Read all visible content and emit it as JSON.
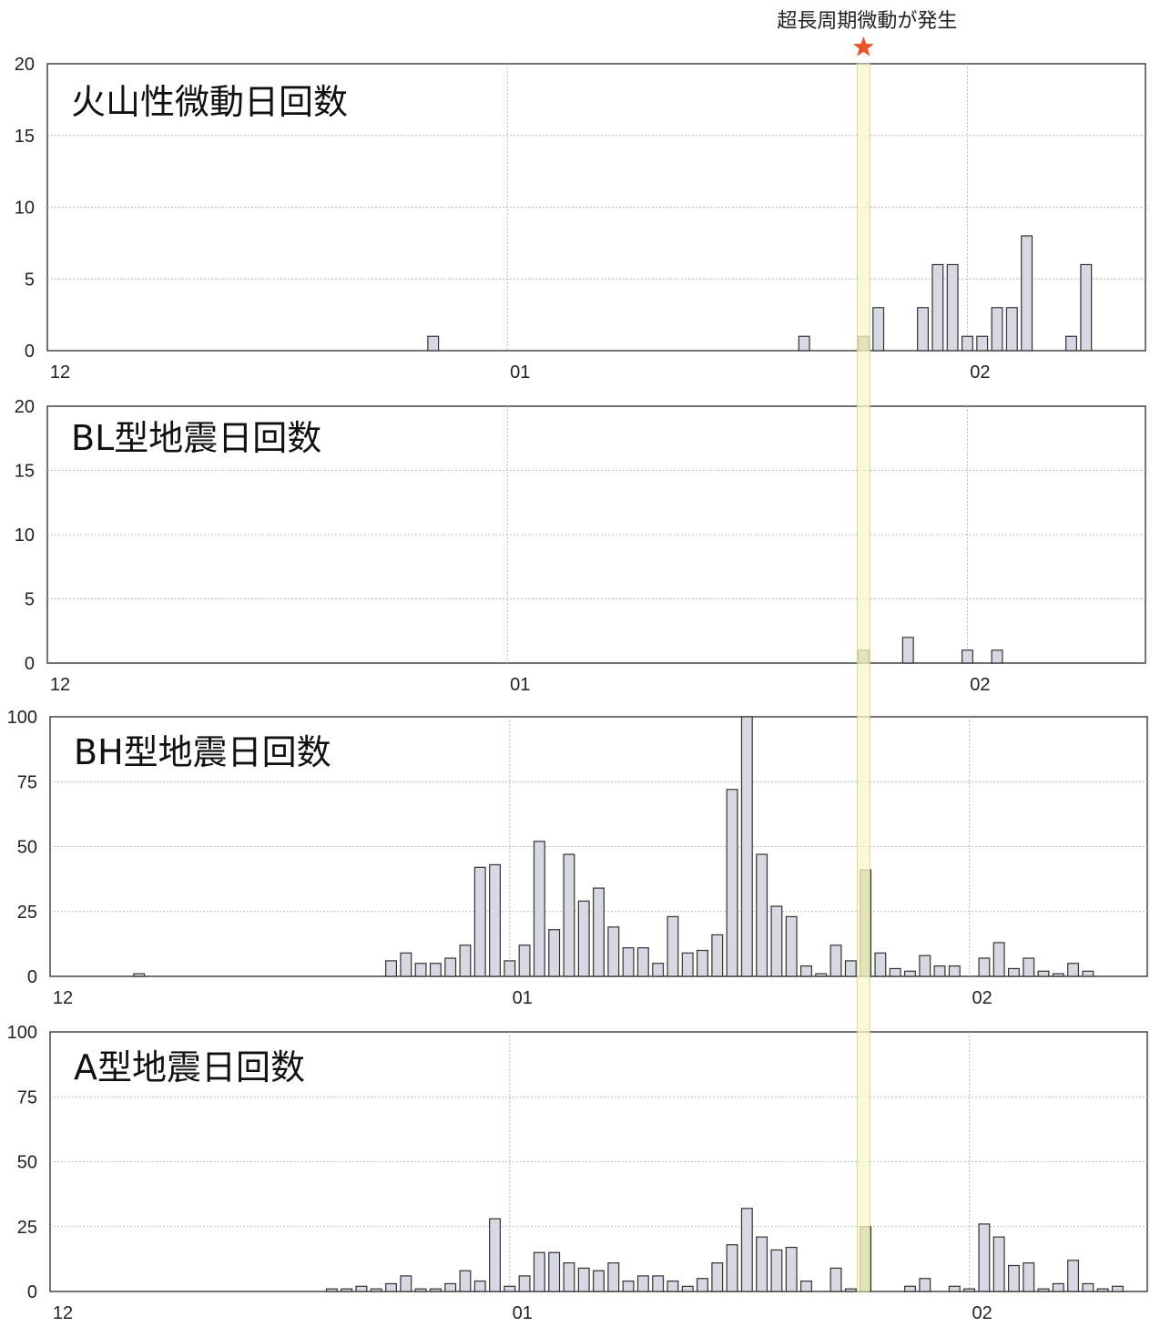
{
  "annotation": {
    "text": "超長周期微動が発生",
    "marker": "star-icon",
    "marker_color": "#e8552a",
    "highlight_color": "#f7f7c8",
    "highlight_day": 55
  },
  "style": {
    "bar_fill": "#d8d8e2",
    "bar_fill_highlight": "#a9a88a",
    "bar_stroke": "#333333",
    "grid_color": "#bbbbbb"
  },
  "chart_data": [
    {
      "type": "bar",
      "title": "火山性微動日回数",
      "xlabel": "",
      "ylabel": "",
      "ylim": [
        0,
        20
      ],
      "yticks": [
        0,
        5,
        10,
        15,
        20
      ],
      "xticks": [
        {
          "day": 0,
          "label": "12"
        },
        {
          "day": 31,
          "label": "01"
        },
        {
          "day": 62,
          "label": "02"
        }
      ],
      "xlim": [
        0,
        74
      ],
      "grid": true,
      "x": [
        26,
        51,
        55,
        56,
        59,
        60,
        61,
        62,
        63,
        64,
        65,
        66,
        67,
        69,
        70
      ],
      "values": [
        1,
        1,
        1,
        3,
        3,
        6,
        6,
        1,
        1,
        3,
        3,
        8,
        0,
        1,
        6
      ]
    },
    {
      "type": "bar",
      "title": "BL型地震日回数",
      "xlabel": "",
      "ylabel": "",
      "ylim": [
        0,
        20
      ],
      "yticks": [
        0,
        5,
        10,
        15,
        20
      ],
      "xticks": [
        {
          "day": 0,
          "label": "12"
        },
        {
          "day": 31,
          "label": "01"
        },
        {
          "day": 62,
          "label": "02"
        }
      ],
      "xlim": [
        0,
        74
      ],
      "grid": true,
      "x": [
        55,
        58,
        62,
        64
      ],
      "values": [
        1,
        2,
        1,
        1
      ]
    },
    {
      "type": "bar",
      "title": "BH型地震日回数",
      "xlabel": "",
      "ylabel": "",
      "ylim": [
        0,
        100
      ],
      "yticks": [
        0,
        25,
        50,
        75,
        100
      ],
      "xticks": [
        {
          "day": 0,
          "label": "12"
        },
        {
          "day": 31,
          "label": "01"
        },
        {
          "day": 62,
          "label": "02"
        }
      ],
      "xlim": [
        0,
        74
      ],
      "grid": true,
      "x": [
        6,
        23,
        24,
        25,
        26,
        27,
        28,
        29,
        30,
        31,
        32,
        33,
        34,
        35,
        36,
        37,
        38,
        39,
        40,
        41,
        42,
        43,
        44,
        45,
        46,
        47,
        48,
        49,
        50,
        51,
        52,
        53,
        54,
        55,
        56,
        57,
        58,
        59,
        60,
        61,
        62,
        63,
        64,
        65,
        66,
        67,
        68,
        69,
        70
      ],
      "values": [
        1,
        6,
        9,
        5,
        5,
        7,
        12,
        42,
        43,
        6,
        12,
        52,
        18,
        47,
        29,
        34,
        19,
        11,
        11,
        5,
        23,
        9,
        10,
        16,
        72,
        100,
        47,
        27,
        23,
        4,
        1,
        12,
        6,
        41,
        9,
        3,
        2,
        8,
        4,
        4,
        0,
        7,
        13,
        3,
        7,
        2,
        1,
        5,
        2
      ]
    },
    {
      "type": "bar",
      "title": "A型地震日回数",
      "xlabel": "",
      "ylabel": "",
      "ylim": [
        0,
        100
      ],
      "yticks": [
        0,
        25,
        50,
        75,
        100
      ],
      "xticks": [
        {
          "day": 0,
          "label": "12"
        },
        {
          "day": 31,
          "label": "01"
        },
        {
          "day": 62,
          "label": "02"
        }
      ],
      "xlim": [
        0,
        74
      ],
      "grid": true,
      "x": [
        19,
        20,
        21,
        22,
        23,
        24,
        25,
        26,
        27,
        28,
        29,
        30,
        31,
        32,
        33,
        34,
        35,
        36,
        37,
        38,
        39,
        40,
        41,
        42,
        43,
        44,
        45,
        46,
        47,
        48,
        49,
        50,
        51,
        53,
        54,
        55,
        58,
        59,
        61,
        62,
        63,
        64,
        65,
        66,
        67,
        68,
        69,
        70,
        71,
        72
      ],
      "values": [
        1,
        1,
        2,
        1,
        3,
        6,
        1,
        1,
        3,
        8,
        4,
        28,
        2,
        6,
        15,
        15,
        11,
        9,
        8,
        11,
        4,
        6,
        6,
        4,
        2,
        5,
        11,
        18,
        32,
        21,
        16,
        17,
        4,
        9,
        1,
        25,
        2,
        5,
        2,
        1,
        26,
        21,
        10,
        11,
        1,
        3,
        12,
        3,
        1,
        2
      ]
    }
  ]
}
